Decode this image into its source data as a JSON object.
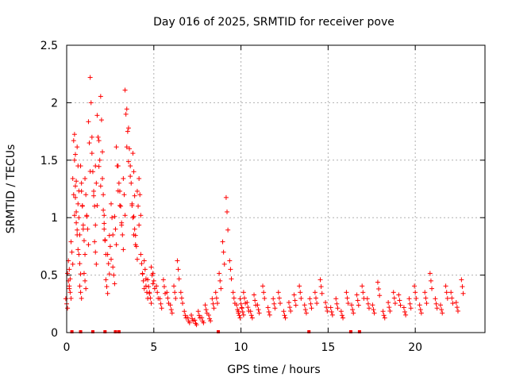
{
  "chart_data": {
    "type": "scatter",
    "title": "Day 016 of 2025, SRMTID for receiver pove",
    "xlabel": "GPS time / hours",
    "ylabel": "SRMTID / TECUs",
    "xlim": [
      0,
      24
    ],
    "ylim": [
      0,
      2.5
    ],
    "grid": true,
    "marker": "+",
    "series_color": "#ff0000",
    "x_ticks": [
      {
        "value": 0,
        "label": "0"
      },
      {
        "value": 5,
        "label": "5"
      },
      {
        "value": 10,
        "label": "10"
      },
      {
        "value": 15,
        "label": "15"
      },
      {
        "value": 20,
        "label": "20"
      }
    ],
    "y_ticks": [
      {
        "value": 0,
        "label": "0"
      },
      {
        "value": 0.5,
        "label": "0.5"
      },
      {
        "value": 1,
        "label": "1"
      },
      {
        "value": 1.5,
        "label": "1.5"
      },
      {
        "value": 2,
        "label": "2"
      },
      {
        "value": 2.5,
        "label": "2.5"
      }
    ],
    "series": [
      {
        "name": "SRMTID",
        "x": [
          0.0,
          0.1,
          0.15,
          0.2,
          0.3,
          0.4,
          0.45,
          0.5,
          0.55,
          0.6,
          0.65,
          0.7,
          0.75,
          0.8,
          0.85,
          0.9,
          1.0,
          1.05,
          1.1,
          1.2,
          1.3,
          1.4,
          1.5,
          1.6,
          1.65,
          1.7,
          1.8,
          1.9,
          2.0,
          2.1,
          2.15,
          2.2,
          2.3,
          2.4,
          2.5,
          2.6,
          2.7,
          2.8,
          2.9,
          3.0,
          3.1,
          3.2,
          3.3,
          3.4,
          3.5,
          3.6,
          3.7,
          3.8,
          3.85,
          3.9,
          4.0,
          4.1,
          4.2,
          4.3,
          4.4,
          4.5,
          4.6,
          4.7,
          4.8,
          4.9,
          5.0,
          5.2,
          5.4,
          5.6,
          5.8,
          6.0,
          6.2,
          6.4,
          6.6,
          6.8,
          7.0,
          7.2,
          7.4,
          7.6,
          7.8,
          8.0,
          8.2,
          8.4,
          8.6,
          8.8,
          9.0,
          9.2,
          9.4,
          9.6,
          9.8,
          9.9,
          10.0,
          10.1,
          10.2,
          10.4,
          10.6,
          10.8,
          11.0,
          11.3,
          11.6,
          11.9,
          12.2,
          12.5,
          12.8,
          13.1,
          13.4,
          13.7,
          14.0,
          14.3,
          14.6,
          14.9,
          15.2,
          15.5,
          15.8,
          16.1,
          16.4,
          16.7,
          17.0,
          17.3,
          17.6,
          17.9,
          18.2,
          18.5,
          18.8,
          19.1,
          19.4,
          19.7,
          20.0,
          20.3,
          20.6,
          20.9,
          21.2,
          21.5,
          21.8,
          22.1,
          22.4,
          22.7
        ],
        "y": [
          0.25,
          0.45,
          0.55,
          0.35,
          0.7,
          1.2,
          1.5,
          1.55,
          1.05,
          0.85,
          1.45,
          1.0,
          0.6,
          0.35,
          1.3,
          1.1,
          0.8,
          0.45,
          1.2,
          0.9,
          1.65,
          2.0,
          1.4,
          1.1,
          0.7,
          1.3,
          1.7,
          1.5,
          1.85,
          1.2,
          0.95,
          0.8,
          0.4,
          0.6,
          0.75,
          1.0,
          0.5,
          0.9,
          1.45,
          1.3,
          1.1,
          0.85,
          1.2,
          1.9,
          1.75,
          1.6,
          1.3,
          1.0,
          1.4,
          0.9,
          0.75,
          1.1,
          1.2,
          0.6,
          0.45,
          0.55,
          0.35,
          0.4,
          0.3,
          0.5,
          0.45,
          0.35,
          0.25,
          0.4,
          0.3,
          0.2,
          0.35,
          0.55,
          0.3,
          0.15,
          0.1,
          0.12,
          0.08,
          0.15,
          0.1,
          0.2,
          0.12,
          0.25,
          0.3,
          0.45,
          0.7,
          1.05,
          0.55,
          0.3,
          0.2,
          0.15,
          0.25,
          0.18,
          0.3,
          0.22,
          0.15,
          0.28,
          0.2,
          0.35,
          0.18,
          0.25,
          0.3,
          0.15,
          0.22,
          0.28,
          0.35,
          0.2,
          0.25,
          0.3,
          0.4,
          0.22,
          0.18,
          0.25,
          0.15,
          0.3,
          0.2,
          0.28,
          0.35,
          0.25,
          0.2,
          0.38,
          0.15,
          0.22,
          0.3,
          0.28,
          0.18,
          0.25,
          0.35,
          0.2,
          0.3,
          0.45,
          0.25,
          0.2,
          0.35,
          0.3,
          0.22,
          0.4
        ]
      }
    ],
    "zero_markers_x": [
      0.3,
      0.8,
      1.5,
      2.2,
      2.8,
      3.0,
      8.7,
      13.9,
      16.3,
      16.8
    ]
  }
}
